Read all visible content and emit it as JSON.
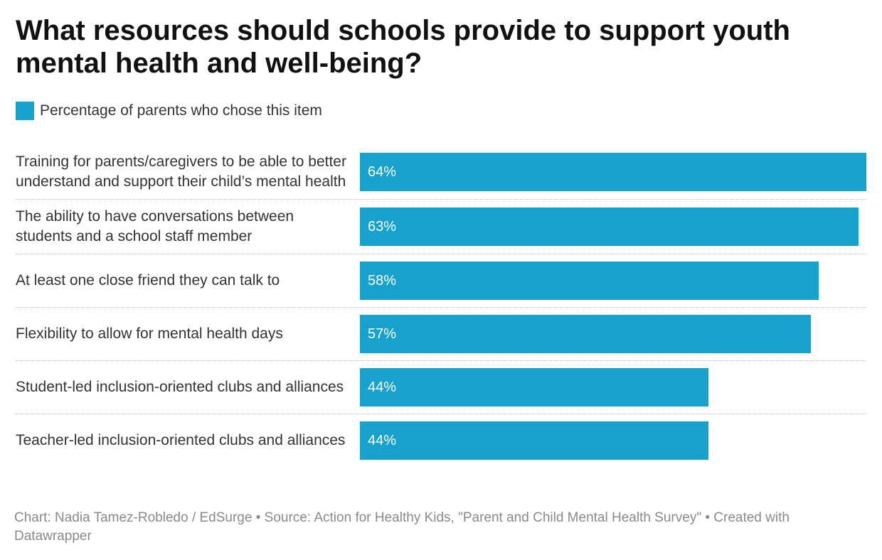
{
  "chart_data": {
    "type": "bar",
    "orientation": "horizontal",
    "title": "What resources should schools provide to support youth mental health and well-being?",
    "categories": [
      "Training for parents/caregivers to be able to better understand and support their child’s mental health",
      "The ability to have conversations between students and a school staff member",
      "At least one close friend they can talk to",
      "Flexibility to allow for mental health days",
      "Student-led inclusion-oriented clubs and alliances",
      "Teacher-led inclusion-oriented clubs and alliances"
    ],
    "series": [
      {
        "name": "Percentage of parents who chose this item",
        "color": "#18a1cd",
        "values": [
          64,
          63,
          58,
          57,
          44,
          44
        ],
        "value_labels": [
          "64%",
          "63%",
          "58%",
          "57%",
          "44%",
          "44%"
        ]
      }
    ],
    "footer": "Chart: Nadia Tamez-Robledo / EdSurge • Source: Action for Healthy Kids, \"Parent and Child Mental Health Survey\" • Created with Datawrapper"
  }
}
